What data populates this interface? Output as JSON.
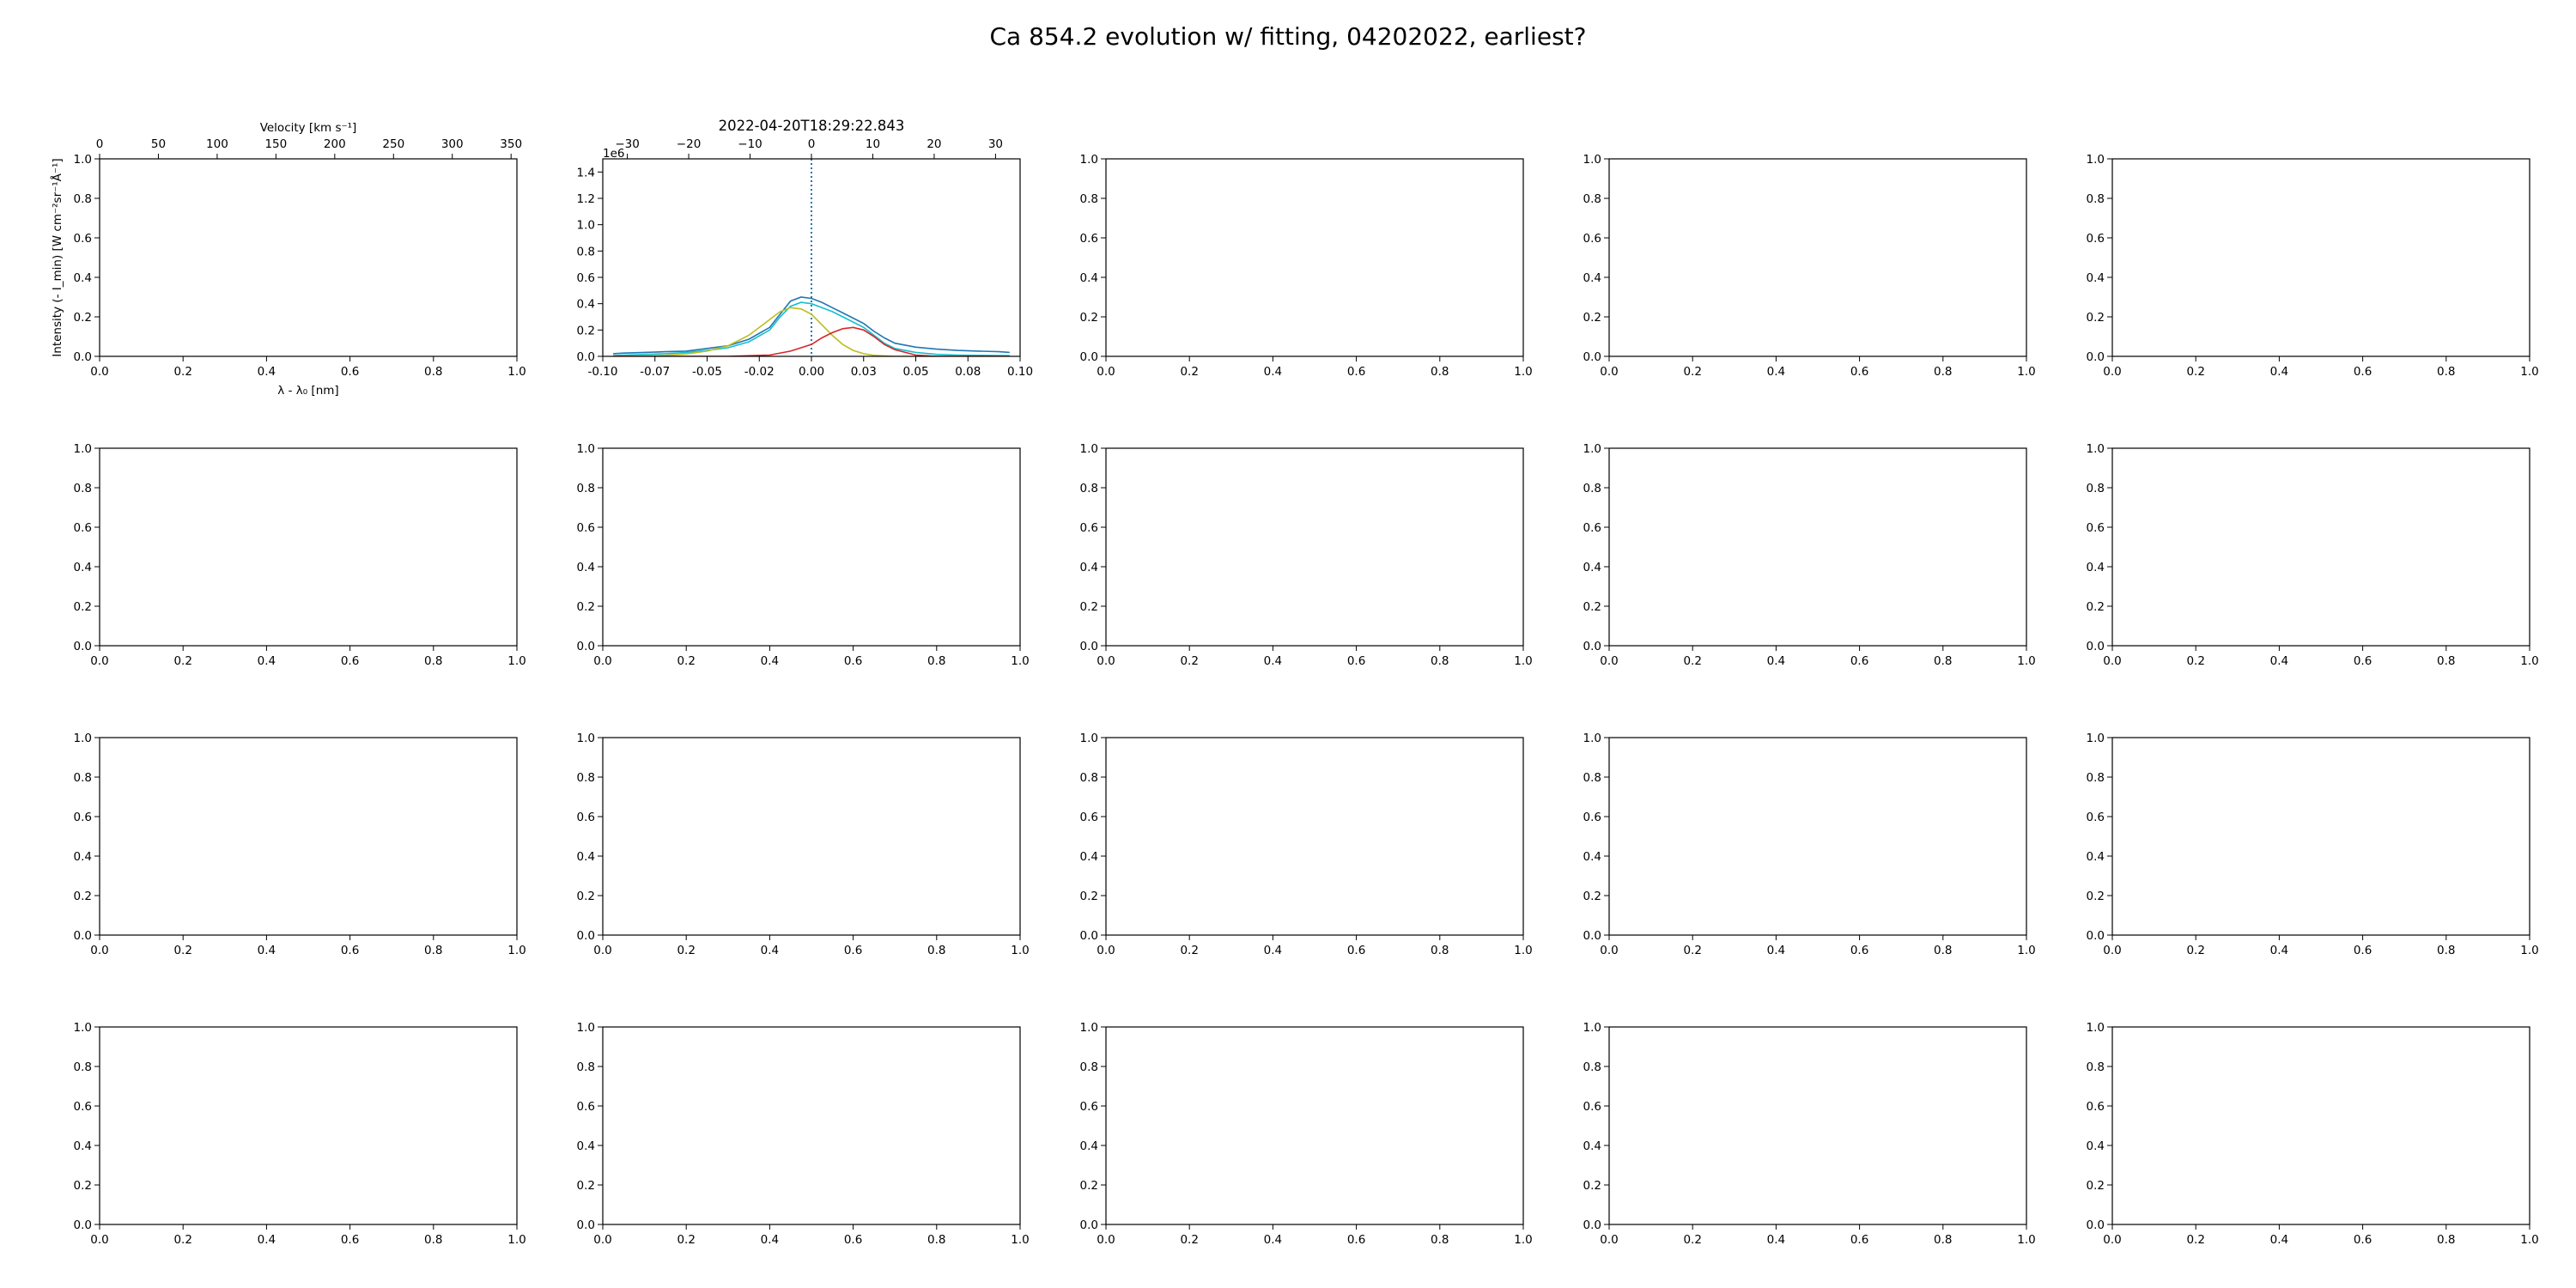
{
  "figure": {
    "suptitle": "Ca 854.2 evolution w/ fitting, 04202022, earliest?"
  },
  "chart_data": {
    "type": "line",
    "layout": "grid 4x5 of subplots",
    "default_ticks": [
      "0.0",
      "0.2",
      "0.4",
      "0.6",
      "0.8",
      "1.0"
    ],
    "label_panel": {
      "xlabel": "λ - λ₀ [nm]",
      "ylabel": "Intensity (- I_min) [W cm⁻²sr⁻¹Å⁻¹]",
      "top_axis_label": "Velocity [km s⁻¹]",
      "top_ticks": [
        "0",
        "50",
        "100",
        "150",
        "200",
        "250",
        "300",
        "350"
      ]
    },
    "data_panel": {
      "title": "2022-04-20T18:29:22.843",
      "offset_text": "1e6",
      "xlim": [
        -0.1,
        0.1
      ],
      "ylim": [
        0,
        1.5
      ],
      "x_ticks": [
        "-0.10",
        "-0.07",
        "-0.05",
        "-0.02",
        "0.00",
        "0.03",
        "0.05",
        "0.08",
        "0.10"
      ],
      "y_ticks": [
        "0.0",
        "0.2",
        "0.4",
        "0.6",
        "0.8",
        "1.0",
        "1.2",
        "1.4"
      ],
      "top_ticks": [
        "−30",
        "−20",
        "−10",
        "0",
        "10",
        "20",
        "30"
      ],
      "vline_x": 0.0,
      "series": [
        {
          "color": "#1f77b4",
          "x": [
            -0.095,
            -0.09,
            -0.08,
            -0.07,
            -0.06,
            -0.05,
            -0.04,
            -0.03,
            -0.02,
            -0.015,
            -0.01,
            -0.005,
            0.0,
            0.005,
            0.01,
            0.015,
            0.02,
            0.025,
            0.03,
            0.035,
            0.04,
            0.05,
            0.06,
            0.07,
            0.08,
            0.09,
            0.095
          ],
          "y": [
            0.02,
            0.025,
            0.03,
            0.035,
            0.04,
            0.06,
            0.08,
            0.13,
            0.22,
            0.32,
            0.42,
            0.45,
            0.44,
            0.41,
            0.37,
            0.33,
            0.29,
            0.25,
            0.19,
            0.14,
            0.1,
            0.07,
            0.055,
            0.045,
            0.04,
            0.035,
            0.03
          ]
        },
        {
          "color": "#17becf",
          "x": [
            -0.095,
            -0.09,
            -0.08,
            -0.07,
            -0.06,
            -0.05,
            -0.04,
            -0.03,
            -0.02,
            -0.015,
            -0.01,
            -0.005,
            0.0,
            0.005,
            0.01,
            0.015,
            0.02,
            0.025,
            0.03,
            0.035,
            0.04,
            0.05,
            0.06,
            0.07,
            0.08,
            0.09,
            0.095
          ],
          "y": [
            0.005,
            0.01,
            0.015,
            0.02,
            0.03,
            0.045,
            0.065,
            0.11,
            0.2,
            0.3,
            0.38,
            0.41,
            0.4,
            0.37,
            0.34,
            0.3,
            0.26,
            0.22,
            0.16,
            0.1,
            0.06,
            0.03,
            0.015,
            0.01,
            0.008,
            0.006,
            0.005
          ]
        },
        {
          "color": "#bcbd22",
          "x": [
            -0.095,
            -0.08,
            -0.07,
            -0.06,
            -0.05,
            -0.04,
            -0.03,
            -0.02,
            -0.015,
            -0.01,
            -0.005,
            0.0,
            0.005,
            0.01,
            0.015,
            0.02,
            0.025,
            0.03,
            0.04,
            0.06,
            0.08,
            0.095
          ],
          "y": [
            0.0,
            0.003,
            0.008,
            0.018,
            0.04,
            0.08,
            0.16,
            0.28,
            0.34,
            0.37,
            0.36,
            0.32,
            0.24,
            0.16,
            0.09,
            0.045,
            0.02,
            0.008,
            0.0,
            0.0,
            0.0,
            0.0
          ]
        },
        {
          "color": "#d62728",
          "x": [
            -0.095,
            -0.04,
            -0.02,
            -0.01,
            0.0,
            0.005,
            0.01,
            0.015,
            0.02,
            0.025,
            0.03,
            0.035,
            0.04,
            0.05,
            0.06,
            0.095
          ],
          "y": [
            0.0,
            0.0,
            0.01,
            0.04,
            0.09,
            0.14,
            0.18,
            0.21,
            0.22,
            0.2,
            0.15,
            0.09,
            0.05,
            0.01,
            0.0,
            0.0
          ]
        }
      ]
    }
  }
}
